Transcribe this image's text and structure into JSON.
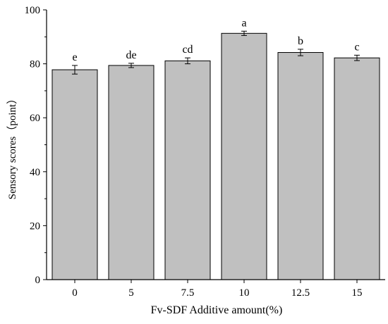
{
  "chart_data": {
    "type": "bar",
    "title": "",
    "xlabel": "Fv-SDF Additive amount(%)",
    "ylabel": "Sensory scores（point）",
    "categories": [
      "0",
      "5",
      "7.5",
      "10",
      "12.5",
      "15"
    ],
    "values": [
      77.8,
      79.4,
      81.1,
      91.3,
      84.2,
      82.2
    ],
    "errors": [
      1.6,
      0.8,
      1.1,
      0.8,
      1.2,
      1.0
    ],
    "significance_letters": [
      "e",
      "de",
      "cd",
      "a",
      "b",
      "c"
    ],
    "ylim": [
      0,
      100
    ],
    "yticks": [
      0,
      20,
      40,
      60,
      80,
      100
    ],
    "grid": false,
    "legend": "none",
    "colors": {
      "bar_fill": "#c0c0c0",
      "bar_stroke": "#000000",
      "axis": "#000000"
    }
  }
}
